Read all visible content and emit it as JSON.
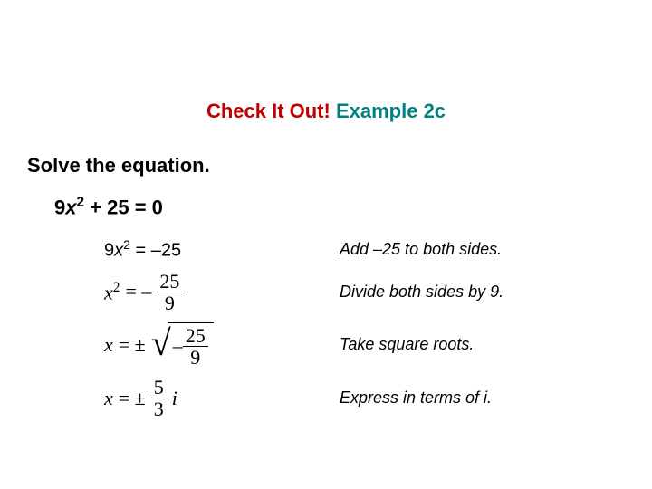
{
  "title": {
    "part1": "Check It Out!",
    "part2": "Example 2c",
    "part1_color": "#c00000",
    "part2_color": "#008080"
  },
  "instruction": "Solve the equation.",
  "problem": {
    "coef": "9",
    "var": "x",
    "exp": "2",
    "rest": " + 25 = 0"
  },
  "steps": [
    {
      "math": {
        "type": "line1",
        "coef": "9",
        "var": "x",
        "exp": "2",
        "eq": " = ",
        "rhs": "–25"
      },
      "explain": "Add –25 to both sides."
    },
    {
      "math": {
        "type": "line2",
        "var": "x",
        "exp": "2",
        "eq": "= –",
        "frac_num": "25",
        "frac_den": "9"
      },
      "explain": "Divide both sides by 9."
    },
    {
      "math": {
        "type": "line3",
        "var": "x",
        "eq": "= ±",
        "neg": "–",
        "frac_num": "25",
        "frac_den": "9"
      },
      "explain": "Take square roots."
    },
    {
      "math": {
        "type": "line4",
        "var": "x",
        "eq": "= ±",
        "frac_num": "5",
        "frac_den": "3",
        "i": "i"
      },
      "explain": "Express in terms of i."
    }
  ],
  "colors": {
    "background": "#ffffff",
    "text": "#000000"
  }
}
